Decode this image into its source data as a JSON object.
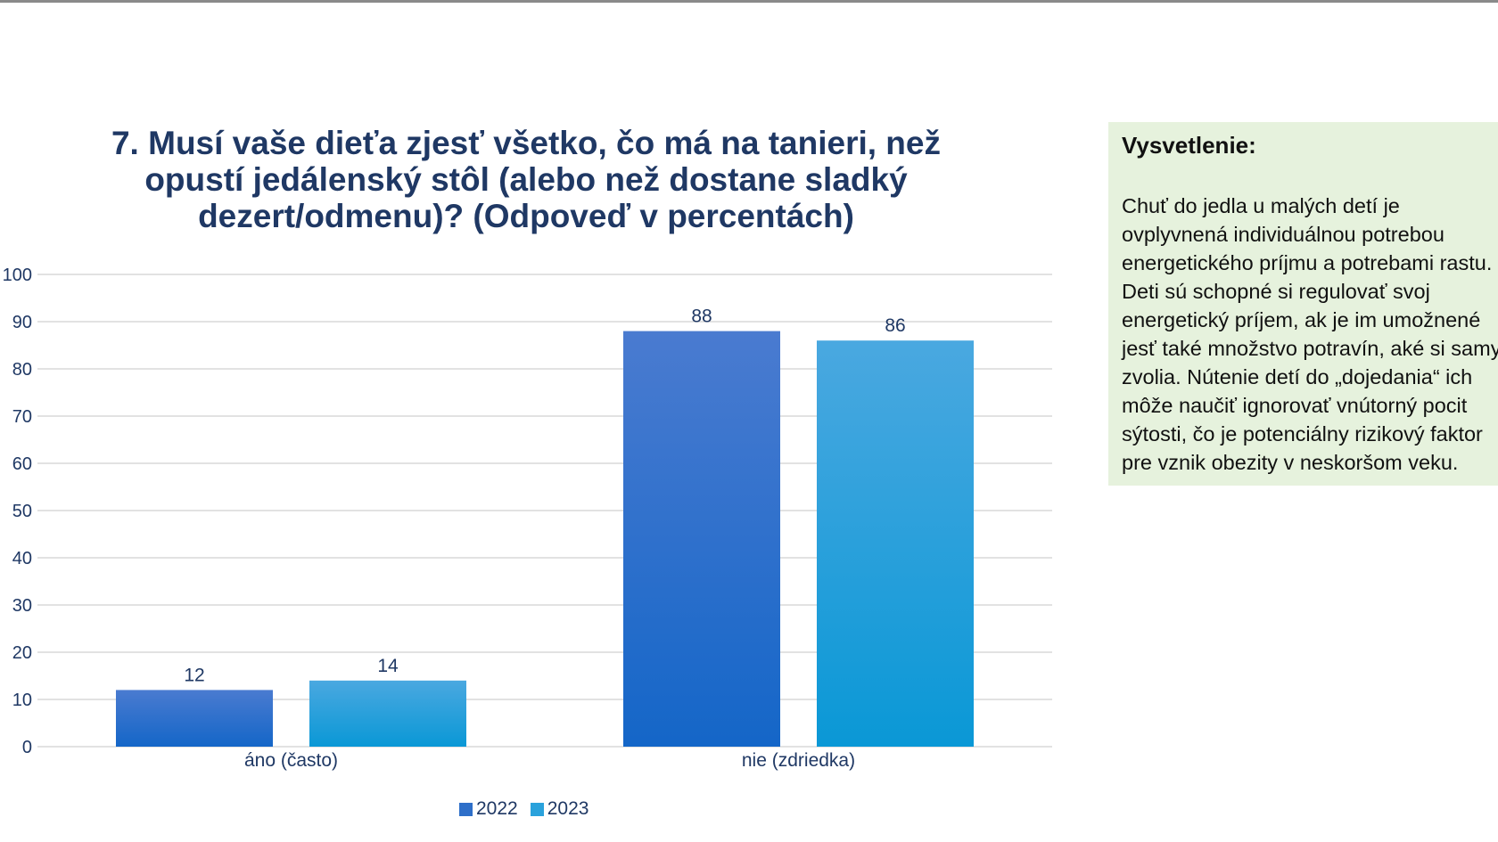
{
  "chart_data": {
    "type": "bar",
    "title": "7. Musí vaše dieťa zjesť všetko, čo má na tanieri, než opustí jedálenský stôl (alebo než dostane sladký dezert/odmenu)? (Odpoveď v percentách)",
    "title_lines": [
      "7. Musí vaše dieťa zjesť všetko, čo má na tanieri, než",
      "opustí jedálenský stôl (alebo než dostane sladký",
      "dezert/odmenu)? (Odpoveď v percentách)"
    ],
    "categories": [
      "áno (často)",
      "nie (zdriedka)"
    ],
    "series": [
      {
        "name": "2022",
        "values": [
          12,
          88
        ],
        "color_top": "#4a7bd0",
        "color_bottom": "#1466c8"
      },
      {
        "name": "2023",
        "values": [
          14,
          86
        ],
        "color_top": "#4aa8e0",
        "color_bottom": "#0a98d6"
      }
    ],
    "ylim": [
      0,
      100
    ],
    "yticks": [
      "0",
      "10",
      "20",
      "30",
      "40",
      "50",
      "60",
      "70",
      "80",
      "90",
      "100"
    ],
    "xlabel": "",
    "ylabel": "",
    "grid": true,
    "legend": "bottom",
    "data_labels": true
  },
  "explanation": {
    "heading": "Vysvetlenie:",
    "lines": [
      "Chuť do jedla u malých detí je",
      "ovplyvnená individuálnou potrebou",
      "energetického príjmu a potrebami rastu.",
      "Deti sú schopné si regulovať svoj",
      "energetický príjem, ak je im umožnené",
      "jesť také množstvo potravín, aké si samy",
      "zvolia. Nútenie detí do „dojedania“ ich",
      "môže naučiť ignorovať vnútorný pocit",
      "sýtosti, čo je potenciálny rizikový faktor",
      "pre vznik obezity v neskoršom veku."
    ],
    "background": "#e6f2dd"
  },
  "colors": {
    "title": "#1f3864",
    "axis_text": "#1f3864",
    "gridline": "#d9d9d9"
  }
}
